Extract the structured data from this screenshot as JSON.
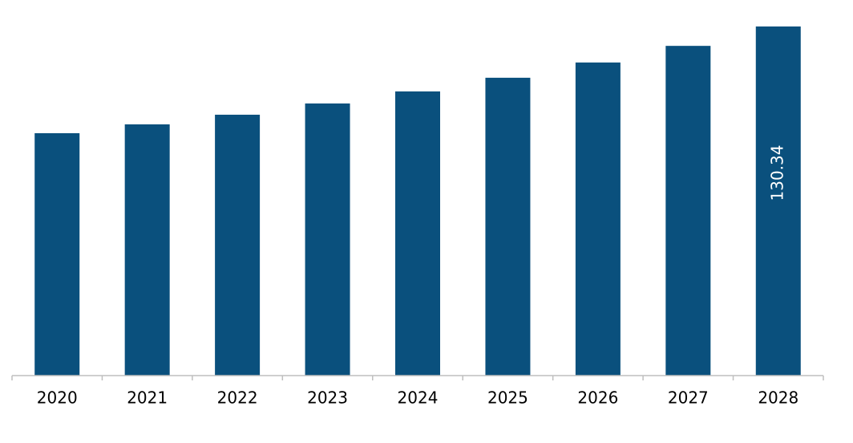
{
  "chart_data": {
    "type": "bar",
    "categories": [
      "2020",
      "2021",
      "2022",
      "2023",
      "2024",
      "2025",
      "2026",
      "2027",
      "2028"
    ],
    "values": [
      90.5,
      93.8,
      97.4,
      101.6,
      106.1,
      111.2,
      116.9,
      123.1,
      130.34
    ],
    "value_labels": [
      null,
      null,
      null,
      null,
      null,
      null,
      null,
      null,
      "130.34"
    ],
    "color": "#0a507d"
  }
}
